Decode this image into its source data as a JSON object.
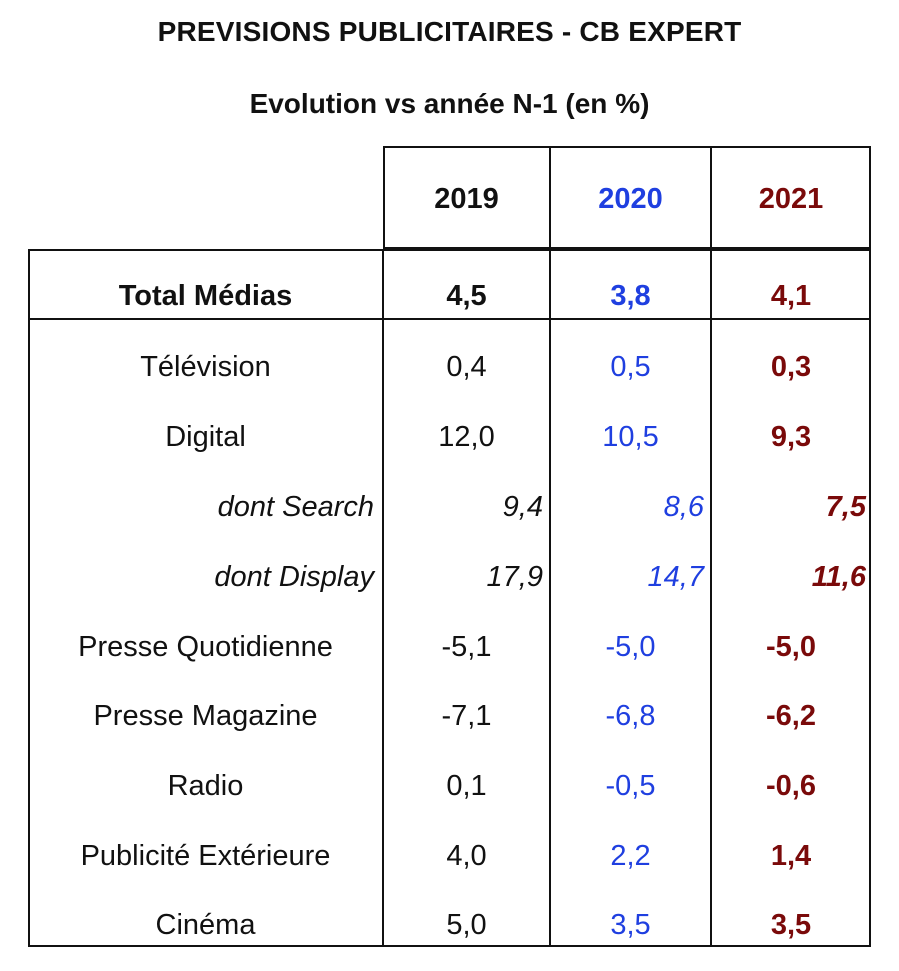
{
  "title": "PREVISIONS PUBLICITAIRES - CB EXPERT",
  "subtitle": "Evolution vs année N-1 (en %)",
  "colors": {
    "y2019": "#111111",
    "y2020": "#1f3fe0",
    "y2021": "#7a0a0a"
  },
  "chart_data": {
    "type": "table",
    "columns": [
      "2019",
      "2020",
      "2021"
    ],
    "rows": [
      {
        "label": "Total Médias",
        "values": [
          "4,5",
          "3,8",
          "4,1"
        ]
      },
      {
        "label": "Télévision",
        "values": [
          "0,4",
          "0,5",
          "0,3"
        ]
      },
      {
        "label": "Digital",
        "values": [
          "12,0",
          "10,5",
          "9,3"
        ]
      },
      {
        "label": "dont Search",
        "values": [
          "9,4",
          "8,6",
          "7,5"
        ]
      },
      {
        "label": "dont Display",
        "values": [
          "17,9",
          "14,7",
          "11,6"
        ]
      },
      {
        "label": "Presse Quotidienne",
        "values": [
          "-5,1",
          "-5,0",
          "-5,0"
        ]
      },
      {
        "label": "Presse Magazine",
        "values": [
          "-7,1",
          "-6,8",
          "-6,2"
        ]
      },
      {
        "label": "Radio",
        "values": [
          "0,1",
          "-0,5",
          "-0,6"
        ]
      },
      {
        "label": "Publicité Extérieure",
        "values": [
          "4,0",
          "2,2",
          "1,4"
        ]
      },
      {
        "label": "Cinéma",
        "values": [
          "5,0",
          "3,5",
          "3,5"
        ]
      }
    ]
  }
}
